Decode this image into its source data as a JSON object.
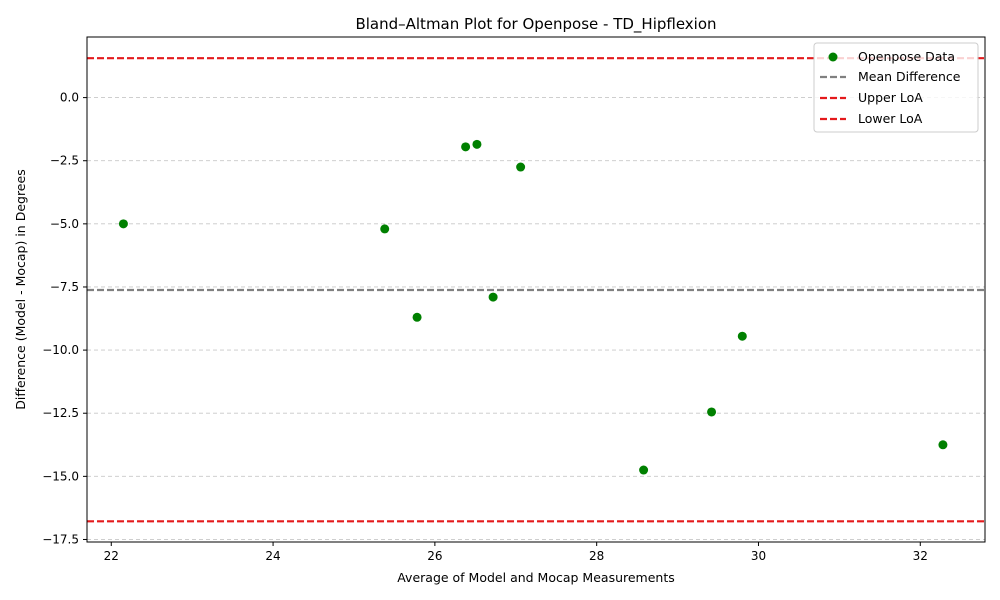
{
  "chart_data": {
    "type": "scatter",
    "title": "Bland–Altman Plot for Openpose - TD_Hipflexion",
    "xlabel": "Average of Model and Mocap Measurements",
    "ylabel": "Difference (Model - Mocap) in Degrees",
    "xlim": [
      21.7,
      32.8
    ],
    "ylim": [
      -17.6,
      2.4
    ],
    "xticks": [
      22,
      24,
      26,
      28,
      30,
      32
    ],
    "xtick_labels": [
      "22",
      "24",
      "26",
      "28",
      "30",
      "32"
    ],
    "yticks": [
      0.0,
      -2.5,
      -5.0,
      -7.5,
      -10.0,
      -12.5,
      -15.0,
      -17.5
    ],
    "ytick_labels": [
      "0.0",
      "−2.5",
      "−5.0",
      "−7.5",
      "−10.0",
      "−12.5",
      "−15.0",
      "−17.5"
    ],
    "grid": "y-dashed",
    "legend_position": "top-right",
    "series": [
      {
        "name": "Openpose Data",
        "kind": "scatter",
        "color": "#008000",
        "points": [
          {
            "x": 22.15,
            "y": -5.0
          },
          {
            "x": 25.38,
            "y": -5.2
          },
          {
            "x": 25.78,
            "y": -8.7
          },
          {
            "x": 26.38,
            "y": -1.95
          },
          {
            "x": 26.52,
            "y": -1.85
          },
          {
            "x": 26.72,
            "y": -7.9
          },
          {
            "x": 27.06,
            "y": -2.75
          },
          {
            "x": 28.58,
            "y": -14.75
          },
          {
            "x": 29.42,
            "y": -12.45
          },
          {
            "x": 29.8,
            "y": -9.45
          },
          {
            "x": 32.28,
            "y": -13.75
          }
        ]
      }
    ],
    "reference_lines": [
      {
        "name": "Mean Difference",
        "y": -7.62,
        "color": "#808080",
        "style": "dashed"
      },
      {
        "name": "Upper LoA",
        "y": 1.56,
        "color": "#e41a1c",
        "style": "dashed"
      },
      {
        "name": "Lower LoA",
        "y": -16.78,
        "color": "#e41a1c",
        "style": "dashed"
      }
    ]
  }
}
